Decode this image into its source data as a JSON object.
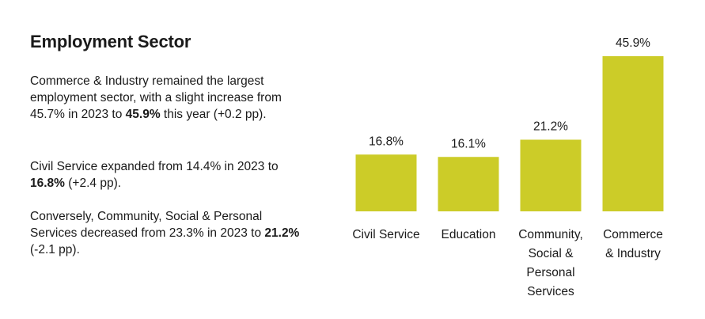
{
  "title": "Employment Sector",
  "paragraphs": [
    {
      "before": "Commerce & Industry remained the largest employment sector, with a slight increase from 45.7% in 2023 to ",
      "bold": "45.9%",
      "after": " this year (+0.2 pp)."
    },
    {
      "before": "Civil Service expanded from 14.4% in 2023 to ",
      "bold": "16.8%",
      "after": " (+2.4 pp)."
    },
    {
      "before": "Conversely, Community, Social & Personal Services decreased from 23.3% in 2023 to ",
      "bold": "21.2%",
      "after": " (-2.1 pp)."
    }
  ],
  "chart_data": {
    "type": "bar",
    "title": "",
    "xlabel": "",
    "ylabel": "",
    "categories": [
      [
        "Civil Service"
      ],
      [
        "Education"
      ],
      [
        "Community,",
        "Social &",
        "Personal",
        "Services"
      ],
      [
        "Commerce",
        "& Industry"
      ]
    ],
    "values": [
      16.8,
      16.1,
      21.2,
      45.9
    ],
    "value_labels": [
      "16.8%",
      "16.1%",
      "21.2%",
      "45.9%"
    ],
    "ylim": [
      0,
      45.9
    ],
    "bar_color": "#cccc28"
  }
}
